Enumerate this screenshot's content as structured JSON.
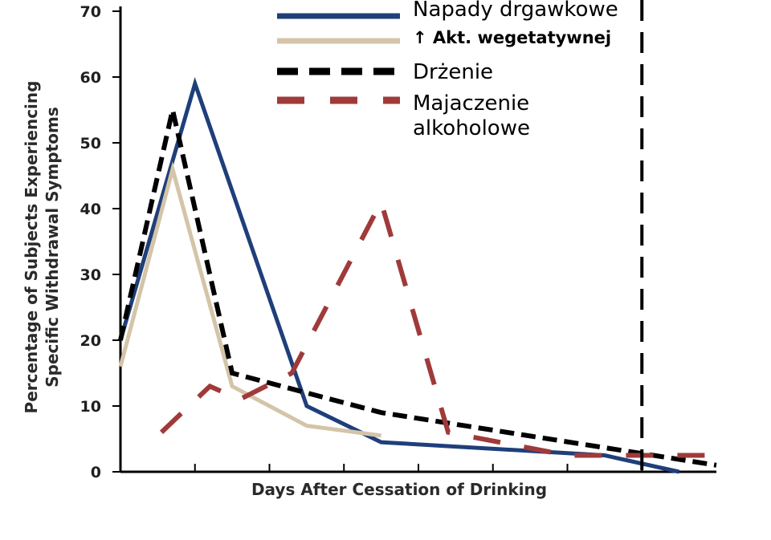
{
  "chart_data": {
    "type": "line",
    "title": "",
    "xlabel": "Days After Cessation of Drinking",
    "ylabel": "Percentage of Subjects Experiencing Specific Withdrawal Symptoms",
    "ylim": [
      0,
      70
    ],
    "yticks": [
      0,
      10,
      20,
      30,
      40,
      50,
      60,
      70
    ],
    "xlim": [
      0,
      8
    ],
    "x_tick_labels": [],
    "grid": false,
    "legend_position": "top",
    "series": [
      {
        "name": "Napady drgawkowe",
        "color": "#1f3f7a",
        "dash": "solid",
        "x": [
          0,
          1.0,
          2.5,
          3.5,
          6.5,
          7.5
        ],
        "y": [
          20,
          59,
          10,
          4.5,
          2.5,
          0
        ]
      },
      {
        "name": "↑ Akt. wegetatywnej",
        "color": "#d4c4a8",
        "dash": "solid",
        "x": [
          0,
          0.7,
          1.5,
          2.5,
          3.5
        ],
        "y": [
          16,
          46,
          13,
          7,
          5.5
        ]
      },
      {
        "name": "Drżenie",
        "color": "#000000",
        "dash": "short",
        "x": [
          0,
          0.7,
          1.5,
          3.5,
          8
        ],
        "y": [
          20,
          55,
          15,
          9,
          1
        ]
      },
      {
        "name": "Majaczenie alkoholowe",
        "color": "#a03a3a",
        "dash": "long",
        "x": [
          0.55,
          1.2,
          1.6,
          2.3,
          3.5,
          4.4,
          6.0,
          7.0,
          8.0
        ],
        "y": [
          6,
          13,
          11,
          15,
          41,
          6,
          2.5,
          2.5,
          2.5
        ]
      }
    ],
    "reference_line": {
      "x": 7,
      "color": "#000000",
      "style": "dashed"
    }
  }
}
